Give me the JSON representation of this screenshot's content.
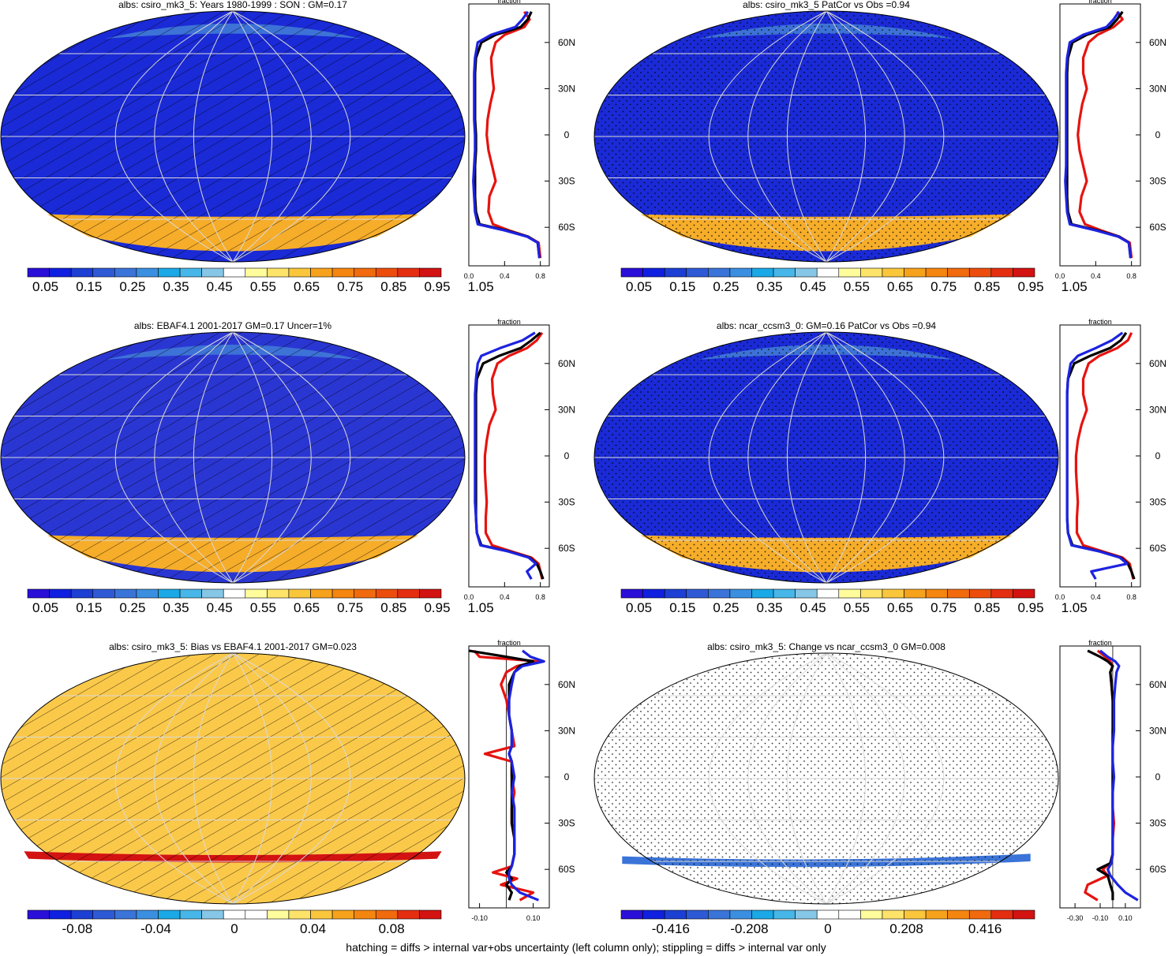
{
  "footer": "hatching = diffs > internal var+obs uncertainty (left column only); stippling = diffs > internal var only",
  "colors": {
    "abs_scale": [
      "#2a0fd9",
      "#0f20e0",
      "#1c3fd4",
      "#2e5ad6",
      "#3b74d8",
      "#3b8fe0",
      "#1aa8e6",
      "#47b6e8",
      "#86c6e6",
      "#ffffff",
      "#fffc9c",
      "#fde36a",
      "#fac63c",
      "#f7a21c",
      "#f4850f",
      "#f16a0d",
      "#ec4d0c",
      "#e52d10",
      "#d31212"
    ],
    "diff_scale": [
      "#2a0fd9",
      "#0f20e0",
      "#1c3fd4",
      "#2e5ad6",
      "#3b74d8",
      "#3b8fe0",
      "#1aa8e6",
      "#47b6e8",
      "#86c6e6",
      "#ffffff",
      "#ffffff",
      "#fffc9c",
      "#fde36a",
      "#fac63c",
      "#f7a21c",
      "#f4850f",
      "#f16a0d",
      "#e52d10",
      "#d31212"
    ],
    "line_model": "#e6130f",
    "line_obs": "#000000",
    "line_other": "#1d23e0"
  },
  "chart_data": [
    {
      "type": "heatmap",
      "title": "albs: csiro_mk3_5: Years 1980-1999 : SON : GM=0.17",
      "map_fill": "#1a2ad6",
      "colorbar": {
        "labels": [
          "0.05",
          "0.15",
          "0.25",
          "0.35",
          "0.45",
          "0.55",
          "0.65",
          "0.75",
          "0.85",
          "0.95",
          "1.05"
        ],
        "scale": "abs_scale"
      },
      "overlay": "hatch",
      "zonal": {
        "xlabel": "fraction",
        "xlim": [
          0,
          0.9
        ],
        "xticks": [
          "0.0",
          "0.4",
          "0.8"
        ],
        "ylim": [
          -85,
          85
        ],
        "yticks": [
          "60N",
          "30N",
          "0",
          "30S",
          "60S"
        ],
        "ytick_values": [
          60,
          30,
          0,
          -30,
          -60
        ],
        "lat": [
          80,
          75,
          70,
          65,
          60,
          50,
          40,
          30,
          20,
          10,
          0,
          -10,
          -20,
          -30,
          -40,
          -50,
          -58,
          -62,
          -66,
          -70,
          -80
        ],
        "series": [
          {
            "name": "",
            "color": "line_model",
            "values": [
              0.62,
              0.68,
              0.62,
              0.4,
              0.3,
              0.25,
              0.26,
              0.28,
              0.24,
              0.21,
              0.2,
              0.22,
              0.26,
              0.3,
              0.23,
              0.22,
              0.27,
              0.45,
              0.66,
              0.78,
              0.8
            ]
          },
          {
            "name": "",
            "color": "line_obs",
            "values": [
              0.7,
              0.66,
              0.58,
              0.3,
              0.14,
              0.08,
              0.07,
              0.07,
              0.07,
              0.07,
              0.08,
              0.08,
              0.07,
              0.07,
              0.07,
              0.08,
              0.12,
              0.42,
              0.66,
              0.77,
              0.79
            ]
          },
          {
            "name": "",
            "color": "line_other",
            "values": [
              0.66,
              0.6,
              0.52,
              0.25,
              0.1,
              0.07,
              0.06,
              0.06,
              0.06,
              0.06,
              0.07,
              0.07,
              0.06,
              0.05,
              0.06,
              0.07,
              0.1,
              0.4,
              0.65,
              0.77,
              0.79
            ]
          }
        ]
      }
    },
    {
      "type": "heatmap",
      "title": "albs: csiro_mk3_5 PatCor vs Obs =0.94",
      "map_fill": "#1a2ad6",
      "colorbar": {
        "labels": [
          "0.05",
          "0.15",
          "0.25",
          "0.35",
          "0.45",
          "0.55",
          "0.65",
          "0.75",
          "0.85",
          "0.95",
          "1.05"
        ],
        "scale": "abs_scale"
      },
      "overlay": "stipple",
      "zonal": {
        "xlabel": "fraction",
        "xlim": [
          0,
          0.9
        ],
        "xticks": [
          "0.0",
          "0.4",
          "0.8"
        ],
        "ylim": [
          -85,
          85
        ],
        "yticks": [
          "60N",
          "30N",
          "0",
          "30S",
          "60S"
        ],
        "ytick_values": [
          60,
          30,
          0,
          -30,
          -60
        ],
        "lat": [
          80,
          75,
          70,
          65,
          60,
          50,
          40,
          30,
          20,
          10,
          0,
          -10,
          -20,
          -30,
          -40,
          -50,
          -58,
          -62,
          -66,
          -70,
          -80
        ],
        "series": [
          {
            "name": "",
            "color": "line_model",
            "values": [
              0.64,
              0.7,
              0.6,
              0.42,
              0.32,
              0.26,
              0.26,
              0.3,
              0.25,
              0.22,
              0.2,
              0.22,
              0.26,
              0.3,
              0.24,
              0.22,
              0.28,
              0.46,
              0.66,
              0.78,
              0.8
            ]
          },
          {
            "name": "",
            "color": "line_obs",
            "values": [
              0.7,
              0.64,
              0.56,
              0.3,
              0.14,
              0.09,
              0.08,
              0.08,
              0.08,
              0.08,
              0.08,
              0.08,
              0.08,
              0.08,
              0.08,
              0.09,
              0.13,
              0.42,
              0.66,
              0.77,
              0.79
            ]
          },
          {
            "name": "",
            "color": "line_other",
            "values": [
              0.66,
              0.6,
              0.52,
              0.26,
              0.11,
              0.08,
              0.07,
              0.07,
              0.07,
              0.07,
              0.07,
              0.07,
              0.07,
              0.06,
              0.07,
              0.08,
              0.11,
              0.4,
              0.65,
              0.77,
              0.79
            ]
          }
        ]
      }
    },
    {
      "type": "heatmap",
      "title": "albs: EBAF4.1 2001-2017 GM=0.17 Uncer=1%",
      "map_fill": "#2a36d2",
      "colorbar": {
        "labels": [
          "0.05",
          "0.15",
          "0.25",
          "0.35",
          "0.45",
          "0.55",
          "0.65",
          "0.75",
          "0.85",
          "0.95",
          "1.05"
        ],
        "scale": "abs_scale"
      },
      "overlay": "hatch",
      "zonal": {
        "xlabel": "fraction",
        "xlim": [
          0,
          0.9
        ],
        "xticks": [
          "0.0",
          "0.4",
          "0.8"
        ],
        "ylim": [
          -85,
          85
        ],
        "yticks": [
          "60N",
          "30N",
          "0",
          "30S",
          "60S"
        ],
        "ytick_values": [
          60,
          30,
          0,
          -30,
          -60
        ],
        "lat": [
          80,
          75,
          70,
          65,
          60,
          50,
          40,
          30,
          20,
          10,
          0,
          -10,
          -20,
          -30,
          -40,
          -50,
          -58,
          -62,
          -66,
          -70,
          -75,
          -80
        ],
        "series": [
          {
            "name": "",
            "color": "line_model",
            "values": [
              0.82,
              0.76,
              0.65,
              0.45,
              0.32,
              0.26,
              0.27,
              0.3,
              0.23,
              0.2,
              0.18,
              0.18,
              0.19,
              0.2,
              0.19,
              0.19,
              0.26,
              0.48,
              0.7,
              0.78,
              0.8,
              0.82
            ]
          },
          {
            "name": "",
            "color": "line_obs",
            "values": [
              0.8,
              0.7,
              0.58,
              0.34,
              0.16,
              0.09,
              0.08,
              0.08,
              0.08,
              0.08,
              0.08,
              0.08,
              0.08,
              0.08,
              0.08,
              0.09,
              0.14,
              0.45,
              0.68,
              0.76,
              0.8,
              0.83
            ]
          },
          {
            "name": "",
            "color": "line_other",
            "values": [
              0.74,
              0.6,
              0.35,
              0.14,
              0.1,
              0.08,
              0.07,
              0.07,
              0.07,
              0.07,
              0.07,
              0.07,
              0.07,
              0.07,
              0.08,
              0.09,
              0.13,
              0.44,
              0.67,
              0.75,
              0.65,
              0.7
            ]
          }
        ]
      }
    },
    {
      "type": "heatmap",
      "title": "albs: ncar_ccsm3_0: GM=0.16 PatCor vs Obs =0.94",
      "map_fill": "#1a2ad6",
      "colorbar": {
        "labels": [
          "0.05",
          "0.15",
          "0.25",
          "0.35",
          "0.45",
          "0.55",
          "0.65",
          "0.75",
          "0.85",
          "0.95",
          "1.05"
        ],
        "scale": "abs_scale"
      },
      "overlay": "stipple",
      "zonal": {
        "xlabel": "fraction",
        "xlim": [
          0,
          0.9
        ],
        "xticks": [
          "0.0",
          "0.4",
          "0.8"
        ],
        "ylim": [
          -85,
          85
        ],
        "yticks": [
          "60N",
          "30N",
          "0",
          "30S",
          "60S"
        ],
        "ytick_values": [
          60,
          30,
          0,
          -30,
          -60
        ],
        "lat": [
          80,
          75,
          70,
          65,
          60,
          50,
          40,
          30,
          20,
          10,
          0,
          -10,
          -20,
          -30,
          -40,
          -50,
          -58,
          -62,
          -66,
          -70,
          -75,
          -80
        ],
        "series": [
          {
            "name": "",
            "color": "line_model",
            "values": [
              0.8,
              0.76,
              0.64,
              0.44,
              0.32,
              0.26,
              0.26,
              0.3,
              0.24,
              0.2,
              0.18,
              0.18,
              0.19,
              0.2,
              0.19,
              0.19,
              0.26,
              0.48,
              0.7,
              0.78,
              0.8,
              0.82
            ]
          },
          {
            "name": "",
            "color": "line_obs",
            "values": [
              0.74,
              0.68,
              0.56,
              0.34,
              0.16,
              0.09,
              0.08,
              0.08,
              0.08,
              0.08,
              0.08,
              0.08,
              0.08,
              0.08,
              0.08,
              0.09,
              0.14,
              0.45,
              0.68,
              0.76,
              0.8,
              0.83
            ]
          },
          {
            "name": "",
            "color": "line_other",
            "values": [
              0.7,
              0.58,
              0.4,
              0.2,
              0.12,
              0.09,
              0.08,
              0.08,
              0.08,
              0.08,
              0.08,
              0.08,
              0.08,
              0.08,
              0.08,
              0.09,
              0.13,
              0.44,
              0.67,
              0.75,
              0.35,
              0.4
            ]
          }
        ]
      }
    },
    {
      "type": "heatmap",
      "title": "albs: csiro_mk3_5: Bias vs EBAF4.1 2001-2017  GM=0.023",
      "map_fill": "#fbc94a",
      "colorbar": {
        "labels": [
          "-0.08",
          "-0.04",
          "0",
          "0.04",
          "0.08"
        ],
        "scale": "diff_scale"
      },
      "overlay": "hatch",
      "zonal": {
        "xlabel": "fraction",
        "xlim": [
          -0.14,
          0.16
        ],
        "xticks": [
          "-0.10",
          "0.10"
        ],
        "ylim": [
          -85,
          85
        ],
        "yticks": [
          "60N",
          "30N",
          "0",
          "30S",
          "60S"
        ],
        "ytick_values": [
          60,
          30,
          0,
          -30,
          -60
        ],
        "lat": [
          82,
          78,
          75,
          72,
          68,
          60,
          50,
          40,
          30,
          20,
          15,
          10,
          0,
          -10,
          -20,
          -30,
          -40,
          -50,
          -58,
          -62,
          -66,
          -70,
          -75,
          -80
        ],
        "series": [
          {
            "name": "",
            "color": "line_model",
            "values": [
              -0.12,
              -0.1,
              0.12,
              0.04,
              0.0,
              -0.02,
              0.0,
              0.01,
              0.02,
              0.03,
              -0.08,
              0.02,
              0.02,
              0.03,
              0.02,
              0.02,
              0.03,
              0.03,
              0.02,
              -0.05,
              0.04,
              -0.02,
              0.1,
              0.05
            ]
          },
          {
            "name": "",
            "color": "line_obs",
            "values": [
              -0.14,
              0.0,
              0.1,
              0.05,
              0.03,
              0.01,
              0.01,
              0.01,
              0.02,
              0.02,
              0.01,
              0.02,
              0.02,
              0.02,
              0.02,
              0.02,
              0.03,
              0.03,
              0.02,
              0.0,
              0.02,
              0.0,
              0.02,
              0.01
            ]
          },
          {
            "name": "",
            "color": "line_other",
            "values": [
              0.06,
              0.09,
              0.14,
              0.06,
              0.03,
              0.02,
              0.01,
              0.01,
              0.02,
              0.02,
              0.01,
              0.02,
              0.03,
              0.02,
              0.03,
              0.03,
              0.03,
              0.03,
              0.02,
              0.01,
              0.01,
              0.02,
              0.05,
              0.12
            ]
          }
        ]
      }
    },
    {
      "type": "heatmap",
      "title": "albs: csiro_mk3_5: Change vs ncar_ccsm3_0 GM=0.008",
      "map_fill": "#ffffff",
      "colorbar": {
        "labels": [
          "-0.416",
          "-0.208",
          "0",
          "0.208",
          "0.416"
        ],
        "scale": "diff_scale"
      },
      "overlay": "stipple",
      "zonal": {
        "xlabel": "fraction",
        "xlim": [
          -0.42,
          0.22
        ],
        "xticks": [
          "-0.30",
          "-0.10",
          "0.10"
        ],
        "ylim": [
          -85,
          85
        ],
        "yticks": [
          "60N",
          "30N",
          "0",
          "30S",
          "60S"
        ],
        "ytick_values": [
          60,
          30,
          0,
          -30,
          -60
        ],
        "lat": [
          82,
          78,
          75,
          72,
          68,
          60,
          50,
          40,
          30,
          20,
          10,
          0,
          -10,
          -20,
          -30,
          -40,
          -50,
          -56,
          -60,
          -64,
          -70,
          -75,
          -80
        ],
        "series": [
          {
            "name": "",
            "color": "line_model",
            "values": [
              -0.12,
              -0.06,
              -0.02,
              0.0,
              -0.02,
              -0.01,
              0.0,
              0.01,
              0.0,
              0.0,
              0.0,
              0.0,
              0.0,
              0.0,
              0.01,
              0.0,
              0.0,
              -0.02,
              -0.08,
              -0.04,
              -0.2,
              -0.22,
              -0.12
            ]
          },
          {
            "name": "",
            "color": "line_obs",
            "values": [
              -0.2,
              -0.1,
              -0.04,
              0.0,
              -0.02,
              -0.01,
              0.0,
              0.0,
              0.0,
              0.0,
              0.0,
              0.0,
              0.0,
              0.0,
              0.0,
              0.0,
              0.0,
              -0.02,
              -0.12,
              -0.04,
              -0.02,
              0.0,
              0.0
            ]
          },
          {
            "name": "",
            "color": "line_other",
            "values": [
              -0.1,
              -0.04,
              0.02,
              0.05,
              0.03,
              0.02,
              0.01,
              0.01,
              0.01,
              0.0,
              0.0,
              0.01,
              0.0,
              0.0,
              0.0,
              0.0,
              0.0,
              -0.01,
              -0.04,
              -0.02,
              0.04,
              0.1,
              0.2
            ]
          }
        ]
      }
    }
  ]
}
